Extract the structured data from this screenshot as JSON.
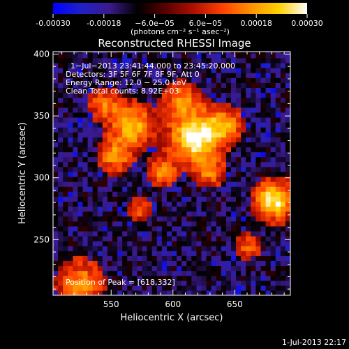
{
  "colorbar": {
    "ticks": [
      "-0.00030",
      "-0.00018",
      "−6.0e−05",
      "6.0e−05",
      "0.00018",
      "0.00030"
    ],
    "tick_values": [
      -0.0003,
      -0.00018,
      -6e-05,
      6e-05,
      0.00018,
      0.0003
    ],
    "range": [
      -0.0003,
      0.0003
    ],
    "units_label": "(photons cm⁻² s⁻¹ asec⁻²)",
    "palette": [
      "#0000ff",
      "#2020c8",
      "#3b1a8c",
      "#000000",
      "#5a0000",
      "#b01000",
      "#ff4000",
      "#ff9000",
      "#ffd000",
      "#ffffff"
    ]
  },
  "chart_data": {
    "type": "heatmap",
    "title": "Reconstructed RHESSI Image",
    "xlabel": "Heliocentric X (arcsec)",
    "ylabel": "Heliocentric Y (arcsec)",
    "xlim": [
      503,
      695
    ],
    "ylim": [
      205,
      402
    ],
    "xticks": [
      550,
      600,
      650
    ],
    "yticks": [
      250,
      300,
      350,
      400
    ],
    "sources": [
      {
        "x": 618,
        "y": 332,
        "sigma": 13,
        "amp": 1.0
      },
      {
        "x": 567,
        "y": 342,
        "sigma": 11,
        "amp": 0.75
      },
      {
        "x": 553,
        "y": 318,
        "sigma": 9,
        "amp": 0.55
      },
      {
        "x": 640,
        "y": 343,
        "sigma": 10,
        "amp": 0.6
      },
      {
        "x": 682,
        "y": 282,
        "sigma": 10,
        "amp": 0.95
      },
      {
        "x": 591,
        "y": 305,
        "sigma": 8,
        "amp": 0.5
      },
      {
        "x": 545,
        "y": 360,
        "sigma": 9,
        "amp": 0.45
      },
      {
        "x": 607,
        "y": 362,
        "sigma": 10,
        "amp": 0.55
      },
      {
        "x": 630,
        "y": 305,
        "sigma": 8,
        "amp": 0.45
      },
      {
        "x": 525,
        "y": 215,
        "sigma": 12,
        "amp": 0.55
      },
      {
        "x": 660,
        "y": 245,
        "sigma": 7,
        "amp": 0.4
      },
      {
        "x": 573,
        "y": 275,
        "sigma": 7,
        "amp": 0.35
      }
    ],
    "peak": [
      618,
      332
    ]
  },
  "annotations": {
    "time_range": "1−Jul−2013 23:41:44.000 to 23:45:20.000",
    "detectors": "Detectors: 3F 5F 6F 7F 8F 9F, Att 0",
    "energy": "Energy Range: 12.0 − 25.0 keV",
    "clean": "Clean      Total counts: 8.92E+03",
    "peak_text": "Position of Peak = [618,332]"
  },
  "footer": {
    "timestamp": "1-Jul-2013 22:17"
  }
}
